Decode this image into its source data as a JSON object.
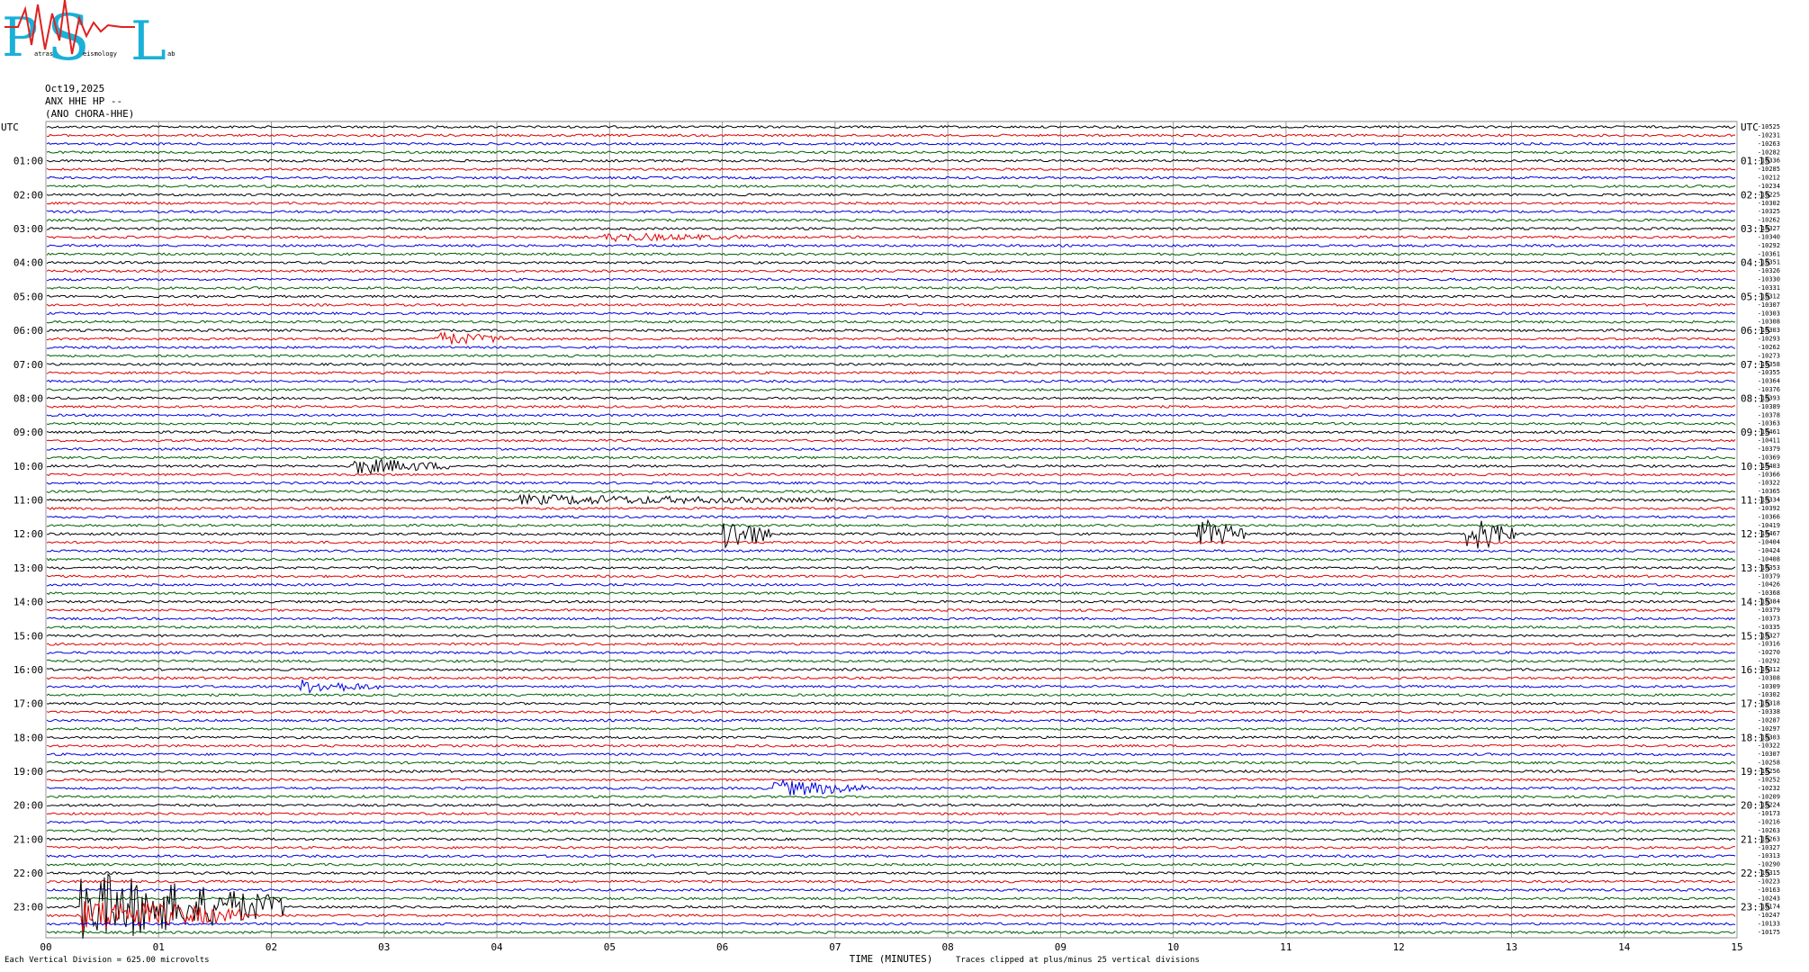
{
  "header": {
    "logo_letters": [
      "P",
      "S",
      "L"
    ],
    "logo_fragments": [
      "atras",
      "eismology",
      "ab"
    ],
    "date": "Oct19,2025",
    "station": "ANX HHE HP --",
    "channel": "(ANO CHORA-HHE)"
  },
  "left_labels": [
    "UTC",
    "01:00",
    "02:00",
    "03:00",
    "04:00",
    "05:00",
    "06:00",
    "07:00",
    "08:00",
    "09:00",
    "10:00",
    "11:00",
    "12:00",
    "13:00",
    "14:00",
    "15:00",
    "16:00",
    "17:00",
    "18:00",
    "19:00",
    "20:00",
    "21:00",
    "22:00",
    "23:00"
  ],
  "right_labels": [
    "UTC",
    "01:15",
    "02:15",
    "03:15",
    "04:15",
    "05:15",
    "06:15",
    "07:15",
    "08:15",
    "09:15",
    "10:15",
    "11:15",
    "12:15",
    "13:15",
    "14:15",
    "15:15",
    "16:15",
    "17:15",
    "18:15",
    "19:15",
    "20:15",
    "21:15",
    "22:15",
    "23:15"
  ],
  "offsets": [
    "-10525",
    "-10231",
    "-10263",
    "-10282",
    "-10336",
    "-10285",
    "-10212",
    "-10234",
    "-10225",
    "-10302",
    "-10325",
    "-10262",
    "-10327",
    "-10340",
    "-10292",
    "-10361",
    "-10351",
    "-10326",
    "-10330",
    "-10331",
    "-10312",
    "-10307",
    "-10303",
    "-10308",
    "-10303",
    "-10293",
    "-10262",
    "-10273",
    "-10358",
    "-10355",
    "-10364",
    "-10376",
    "-10393",
    "-10389",
    "-10378",
    "-10363",
    "-10461",
    "-10411",
    "-10379",
    "-10369",
    "-10403",
    "-10366",
    "-10322",
    "-10365",
    "-10334",
    "-10392",
    "-10366",
    "-10419",
    "-10467",
    "-10404",
    "-10424",
    "-10408",
    "-10353",
    "-10379",
    "-10426",
    "-10368",
    "-10384",
    "-10379",
    "-10373",
    "-10335",
    "-10327",
    "-10316",
    "-10270",
    "-10292",
    "-10312",
    "-10308",
    "-10309",
    "-10302",
    "-10318",
    "-10338",
    "-10287",
    "-10297",
    "-10303",
    "-10322",
    "-10307",
    "-10258",
    "-10256",
    "-10252",
    "-10232",
    "-10209",
    "-10224",
    "-10173",
    "-10216",
    "-10263",
    "-10263",
    "-10327",
    "-10313",
    "-10290",
    "-10315",
    "-10223",
    "-10163",
    "-10243",
    "-10174",
    "-10247",
    "-10133",
    "-10175"
  ],
  "x_labels": [
    "00",
    "01",
    "02",
    "03",
    "04",
    "05",
    "06",
    "07",
    "08",
    "09",
    "10",
    "11",
    "12",
    "13",
    "14",
    "15"
  ],
  "footer": {
    "division": "Each Vertical Division = 625.00 microvolts",
    "axis_title": "TIME (MINUTES)",
    "clip_note": "Traces clipped at plus/minus 25 vertical divisions"
  }
}
